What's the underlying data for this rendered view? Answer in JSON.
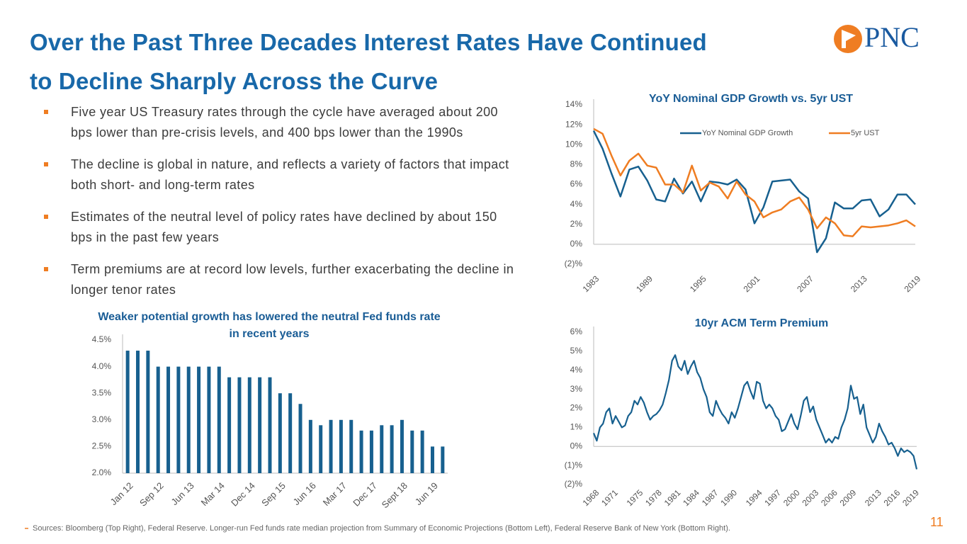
{
  "slide": {
    "title_lines": [
      "Over the Past Three Decades Interest Rates Have Continued",
      "to Decline Sharply Across the Curve"
    ],
    "bullets": [
      "Five year US Treasury rates through the cycle have averaged about 200 bps lower than pre-crisis levels, and 400 bps lower than the 1990s",
      "The decline is global in nature, and reflects a variety of factors that impact both short- and long-term rates",
      "Estimates of the neutral level of policy rates have declined by about 150 bps in the past few years",
      "Term premiums are at record low levels, further exacerbating the decline in longer tenor rates"
    ],
    "sources": "Sources: Bloomberg (Top Right), Federal Reserve. Longer-run Fed funds rate median projection from Summary of Economic Projections (Bottom Left), Federal Reserve Bank of New York (Bottom Right).",
    "page_number": "11",
    "logo": "PNC"
  },
  "chart_data": [
    {
      "type": "line",
      "title": "YoY Nominal GDP Growth vs. 5yr UST",
      "legend": "top",
      "x": [
        1983,
        1984,
        1985,
        1986,
        1987,
        1988,
        1989,
        1990,
        1991,
        1992,
        1993,
        1994,
        1995,
        1996,
        1997,
        1998,
        1999,
        2000,
        2001,
        2002,
        2003,
        2004,
        2005,
        2006,
        2007,
        2008,
        2009,
        2010,
        2011,
        2012,
        2013,
        2014,
        2015,
        2016,
        2017,
        2018,
        2019
      ],
      "series": [
        {
          "name": "YoY Nominal GDP Growth",
          "color": "#17608f",
          "values": [
            11.4,
            9.6,
            7.1,
            4.8,
            7.5,
            7.8,
            6.4,
            4.5,
            4.3,
            6.6,
            5.1,
            6.3,
            4.3,
            6.3,
            6.2,
            6.0,
            6.5,
            5.5,
            2.1,
            3.7,
            6.3,
            6.4,
            6.5,
            5.3,
            4.6,
            -0.8,
            0.6,
            4.2,
            3.6,
            3.6,
            4.4,
            4.5,
            2.8,
            3.5,
            5.0,
            5.0,
            4.0
          ]
        },
        {
          "name": "5yr UST",
          "color": "#ef7d22",
          "values": [
            11.6,
            11.1,
            8.9,
            6.9,
            8.4,
            9.1,
            7.9,
            7.7,
            6.0,
            6.0,
            5.2,
            7.9,
            5.4,
            6.2,
            5.8,
            4.6,
            6.3,
            5.0,
            4.3,
            2.7,
            3.2,
            3.5,
            4.3,
            4.7,
            3.5,
            1.6,
            2.7,
            2.1,
            0.9,
            0.8,
            1.8,
            1.7,
            1.8,
            1.9,
            2.1,
            2.4,
            1.8
          ]
        }
      ],
      "xlim": [
        1983,
        2019
      ],
      "xticks": [
        1983,
        1989,
        1995,
        2001,
        2007,
        2013,
        2019
      ],
      "ylim": [
        -2,
        14
      ],
      "yticks": [
        {
          "value": -2,
          "label": "(2)%"
        },
        {
          "value": 0,
          "label": "0%"
        },
        {
          "value": 2,
          "label": "2%"
        },
        {
          "value": 4,
          "label": "4%"
        },
        {
          "value": 6,
          "label": "6%"
        },
        {
          "value": 8,
          "label": "8%"
        },
        {
          "value": 10,
          "label": "10%"
        },
        {
          "value": 12,
          "label": "12%"
        },
        {
          "value": 14,
          "label": "14%"
        }
      ]
    },
    {
      "type": "bar",
      "title": "Weaker potential growth has lowered the neutral Fed funds rate in recent years",
      "color": "#17608f",
      "categories": [
        "Jan 12",
        null,
        null,
        "Sep 12",
        null,
        null,
        "Jun 13",
        null,
        null,
        "Mar 14",
        null,
        null,
        "Dec 14",
        null,
        null,
        "Sep 15",
        null,
        null,
        "Jun 16",
        null,
        null,
        "Mar 17",
        null,
        null,
        "Dec 17",
        null,
        null,
        "Sept 18",
        null,
        null,
        "Jun 19",
        null
      ],
      "values": [
        4.3,
        4.3,
        4.3,
        4.0,
        4.0,
        4.0,
        4.0,
        4.0,
        4.0,
        4.0,
        3.8,
        3.8,
        3.8,
        3.8,
        3.8,
        3.5,
        3.5,
        3.3,
        3.0,
        2.9,
        3.0,
        3.0,
        3.0,
        2.8,
        2.8,
        2.9,
        2.9,
        3.0,
        2.8,
        2.8,
        2.5,
        2.5
      ],
      "ylim": [
        2.0,
        4.5
      ],
      "yticks": [
        {
          "value": 2.0,
          "label": "2.0%"
        },
        {
          "value": 2.5,
          "label": "2.5%"
        },
        {
          "value": 3.0,
          "label": "3.0%"
        },
        {
          "value": 3.5,
          "label": "3.5%"
        },
        {
          "value": 4.0,
          "label": "4.0%"
        },
        {
          "value": 4.5,
          "label": "4.5%"
        }
      ]
    },
    {
      "type": "line",
      "title": "10yr ACM Term Premium",
      "x": [
        1968,
        1968.5,
        1969,
        1969.5,
        1970,
        1970.5,
        1971,
        1971.5,
        1972,
        1972.5,
        1973,
        1973.5,
        1974,
        1974.5,
        1975,
        1975.5,
        1976,
        1976.5,
        1977,
        1977.5,
        1978,
        1978.5,
        1979,
        1979.5,
        1980,
        1980.5,
        1981,
        1981.5,
        1982,
        1982.5,
        1983,
        1983.5,
        1984,
        1984.5,
        1985,
        1985.5,
        1986,
        1986.5,
        1987,
        1987.5,
        1988,
        1988.5,
        1989,
        1989.5,
        1990,
        1990.5,
        1991,
        1991.5,
        1992,
        1992.5,
        1993,
        1993.5,
        1994,
        1994.5,
        1995,
        1995.5,
        1996,
        1996.5,
        1997,
        1997.5,
        1998,
        1998.5,
        1999,
        1999.5,
        2000,
        2000.5,
        2001,
        2001.5,
        2002,
        2002.5,
        2003,
        2003.5,
        2004,
        2004.5,
        2005,
        2005.5,
        2006,
        2006.5,
        2007,
        2007.5,
        2008,
        2008.5,
        2009,
        2009.5,
        2010,
        2010.5,
        2011,
        2011.5,
        2012,
        2012.5,
        2013,
        2013.5,
        2014,
        2014.5,
        2015,
        2015.5,
        2016,
        2016.5,
        2017,
        2017.5,
        2018,
        2018.5,
        2019,
        2019.5
      ],
      "series": [
        {
          "name": "10yr ACM Term Premium",
          "color": "#17608f",
          "values": [
            0.7,
            0.3,
            1.0,
            1.2,
            1.8,
            2.0,
            1.2,
            1.6,
            1.3,
            1.0,
            1.1,
            1.6,
            1.8,
            2.4,
            2.2,
            2.6,
            2.3,
            1.8,
            1.4,
            1.6,
            1.7,
            1.9,
            2.2,
            2.8,
            3.5,
            4.5,
            4.8,
            4.2,
            4.0,
            4.5,
            3.8,
            4.2,
            4.5,
            3.9,
            3.6,
            3.0,
            2.6,
            1.8,
            1.6,
            2.4,
            2.0,
            1.7,
            1.5,
            1.2,
            1.8,
            1.5,
            2.0,
            2.6,
            3.2,
            3.4,
            2.9,
            2.5,
            3.4,
            3.3,
            2.4,
            2.0,
            2.2,
            2.0,
            1.6,
            1.4,
            0.8,
            0.9,
            1.3,
            1.7,
            1.2,
            0.9,
            1.6,
            2.4,
            2.6,
            1.8,
            2.1,
            1.4,
            1.0,
            0.6,
            0.2,
            0.4,
            0.2,
            0.5,
            0.4,
            1.0,
            1.4,
            2.0,
            3.2,
            2.5,
            2.6,
            1.7,
            2.2,
            1.0,
            0.6,
            0.2,
            0.5,
            1.2,
            0.8,
            0.5,
            0.1,
            0.2,
            -0.1,
            -0.5,
            -0.1,
            -0.3,
            -0.2,
            -0.3,
            -0.5,
            -1.2
          ]
        }
      ],
      "xlim": [
        1968,
        2019.5
      ],
      "xticks": [
        1968,
        1971,
        1975,
        1978,
        1981,
        1984,
        1987,
        1990,
        1994,
        1997,
        2000,
        2003,
        2006,
        2009,
        2013,
        2016,
        2019
      ],
      "ylim": [
        -2,
        6
      ],
      "yticks": [
        {
          "value": -2,
          "label": "(2)%"
        },
        {
          "value": -1,
          "label": "(1)%"
        },
        {
          "value": 0,
          "label": "0%"
        },
        {
          "value": 1,
          "label": "1%"
        },
        {
          "value": 2,
          "label": "2%"
        },
        {
          "value": 3,
          "label": "3%"
        },
        {
          "value": 4,
          "label": "4%"
        },
        {
          "value": 5,
          "label": "5%"
        },
        {
          "value": 6,
          "label": "6%"
        }
      ]
    }
  ]
}
